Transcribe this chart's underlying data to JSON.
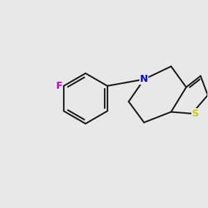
{
  "background_color": "#e8e8e8",
  "bond_color": "#1a1a1a",
  "bond_width": 1.6,
  "atom_labels": {
    "F": {
      "color": "#cc00cc",
      "fontsize": 10
    },
    "N": {
      "color": "#0000ee",
      "fontsize": 10
    },
    "S": {
      "color": "#cccc00",
      "fontsize": 10
    }
  },
  "figsize": [
    3.0,
    3.0
  ],
  "dpi": 100,
  "xlim": [
    0.2,
    8.8
  ],
  "ylim": [
    1.5,
    7.5
  ]
}
